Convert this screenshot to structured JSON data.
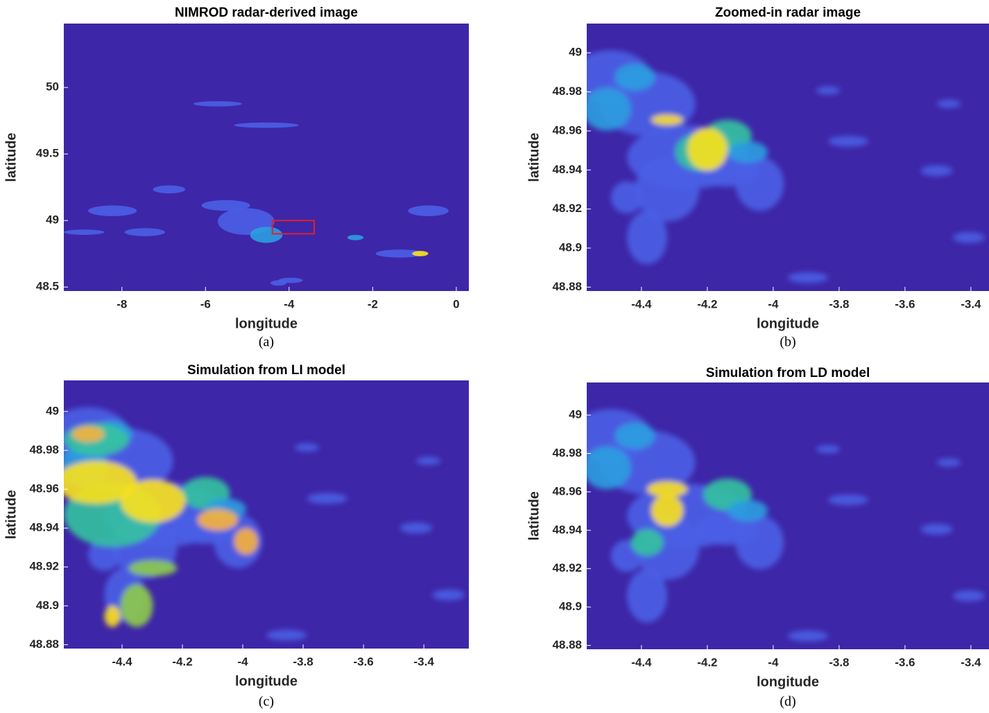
{
  "chart_data": [
    {
      "type": "heatmap",
      "title": "NIMROD radar-derived image",
      "xlabel": "longitude",
      "ylabel": "latitude",
      "caption": "(a)",
      "color": "#3e26a8",
      "xlim": [
        -9.39,
        0.3
      ],
      "ylim": [
        48.47,
        50.48
      ],
      "xticks": [
        -8,
        -6,
        -4,
        -2,
        0
      ],
      "yticks": [
        48.5,
        49,
        49.5,
        50
      ],
      "highlight": {
        "xlim": [
          -4.4,
          -3.4
        ],
        "ylim": [
          48.9,
          49.0
        ],
        "color": "#e0202a"
      }
    },
    {
      "type": "heatmap",
      "title": "Zoomed-in radar image",
      "xlabel": "longitude",
      "ylabel": "latitude",
      "caption": "(b)",
      "color": "#3e26a8",
      "xlim": [
        -4.566,
        -3.345
      ],
      "ylim": [
        48.878,
        49.015
      ],
      "xticks": [
        -4.4,
        -4.2,
        -4,
        -3.8,
        -3.6,
        -3.4
      ],
      "yticks": [
        48.88,
        48.9,
        48.92,
        48.94,
        48.96,
        48.98,
        49
      ]
    },
    {
      "type": "heatmap",
      "title": "Simulation from LI model",
      "xlabel": "longitude",
      "ylabel": "latitude",
      "caption": "(c)",
      "color": "#3e26a8",
      "xlim": [
        -4.593,
        -3.251
      ],
      "ylim": [
        48.878,
        49.016
      ],
      "xticks": [
        -4.4,
        -4.2,
        -4,
        -3.8,
        -3.6,
        -3.4
      ],
      "yticks": [
        48.88,
        48.9,
        48.92,
        48.94,
        48.96,
        48.98,
        49
      ]
    },
    {
      "type": "heatmap",
      "title": "Simulation from LD model",
      "xlabel": "longitude",
      "ylabel": "latitude",
      "caption": "(d)",
      "color": "#3e26a8",
      "xlim": [
        -4.566,
        -3.345
      ],
      "ylim": [
        48.878,
        49.017
      ],
      "xticks": [
        -4.4,
        -4.2,
        -4,
        -3.8,
        -3.6,
        -3.4
      ],
      "yticks": [
        48.88,
        48.9,
        48.92,
        48.94,
        48.96,
        48.98,
        49
      ]
    }
  ]
}
